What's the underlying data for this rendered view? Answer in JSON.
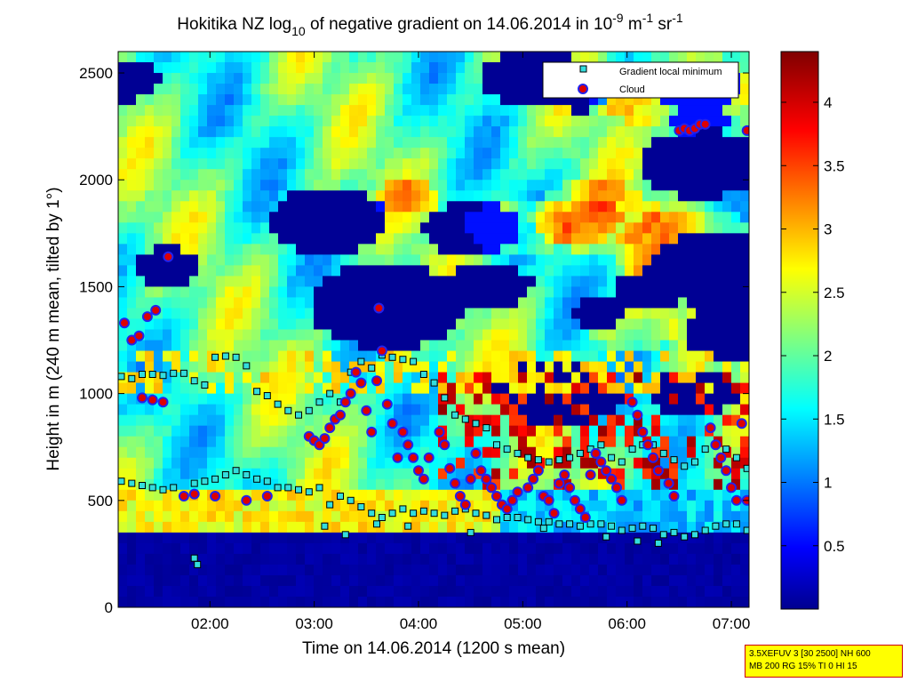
{
  "chart_data": {
    "type": "heatmap",
    "title": {
      "prefix": "Hokitika NZ log",
      "log_base": "10",
      "middle": " of negative gradient on 14.06.2014 in 10",
      "exp1": "-9",
      "unit1": " m",
      "exp2": "-1",
      "unit2": " sr",
      "exp3": "-1"
    },
    "xlabel": "Time on 14.06.2014 (1200 s mean)",
    "ylabel": "Height in m (240 m mean, tilted by 1°)",
    "x_ticks": [
      "02:00",
      "03:00",
      "04:00",
      "05:00",
      "06:00",
      "07:00"
    ],
    "x_tick_hours": [
      2,
      3,
      4,
      5,
      6,
      7
    ],
    "xlim_hours": [
      1.12,
      7.17
    ],
    "y_ticks": [
      0,
      500,
      1000,
      1500,
      2000,
      2500
    ],
    "ylim": [
      0,
      2600
    ],
    "colorbar": {
      "ticks": [
        0.5,
        1,
        1.5,
        2,
        2.5,
        3,
        3.5,
        4
      ],
      "tick_labels": [
        "0.5",
        "1",
        "1.5",
        "2",
        "2.5",
        "3",
        "3.5",
        "4"
      ],
      "range": [
        0,
        4.4
      ],
      "colormap": "jet"
    },
    "legend": {
      "placement": "top-right",
      "entries": [
        "Gradient local minimum",
        "Cloud"
      ]
    },
    "series": [
      {
        "name": "Gradient local minimum",
        "marker": "square",
        "points": [
          [
            1.15,
            1080
          ],
          [
            1.25,
            1070
          ],
          [
            1.35,
            1090
          ],
          [
            1.45,
            1090
          ],
          [
            1.55,
            1085
          ],
          [
            1.65,
            1095
          ],
          [
            1.75,
            1095
          ],
          [
            1.85,
            1060
          ],
          [
            1.95,
            1040
          ],
          [
            2.05,
            1170
          ],
          [
            2.15,
            1175
          ],
          [
            2.25,
            1170
          ],
          [
            2.35,
            1130
          ],
          [
            2.45,
            1010
          ],
          [
            2.55,
            990
          ],
          [
            2.65,
            950
          ],
          [
            2.75,
            920
          ],
          [
            2.85,
            900
          ],
          [
            2.95,
            920
          ],
          [
            3.05,
            960
          ],
          [
            3.15,
            1000
          ],
          [
            3.25,
            960
          ],
          [
            3.35,
            1100
          ],
          [
            3.45,
            1150
          ],
          [
            3.55,
            1120
          ],
          [
            3.65,
            1180
          ],
          [
            3.75,
            1170
          ],
          [
            3.85,
            1160
          ],
          [
            3.95,
            1150
          ],
          [
            4.05,
            1090
          ],
          [
            4.15,
            1050
          ],
          [
            4.25,
            980
          ],
          [
            4.35,
            900
          ],
          [
            4.45,
            880
          ],
          [
            4.55,
            860
          ],
          [
            4.65,
            840
          ],
          [
            4.75,
            760
          ],
          [
            4.85,
            740
          ],
          [
            4.95,
            720
          ],
          [
            5.05,
            700
          ],
          [
            5.15,
            690
          ],
          [
            5.25,
            680
          ],
          [
            5.35,
            690
          ],
          [
            5.45,
            700
          ],
          [
            5.55,
            720
          ],
          [
            5.65,
            740
          ],
          [
            5.75,
            760
          ],
          [
            5.85,
            700
          ],
          [
            5.95,
            680
          ],
          [
            6.05,
            740
          ],
          [
            6.15,
            760
          ],
          [
            6.25,
            760
          ],
          [
            6.35,
            720
          ],
          [
            6.45,
            690
          ],
          [
            6.55,
            660
          ],
          [
            6.65,
            680
          ],
          [
            6.75,
            740
          ],
          [
            6.85,
            760
          ],
          [
            6.95,
            740
          ],
          [
            7.05,
            700
          ],
          [
            7.15,
            650
          ],
          [
            1.15,
            590
          ],
          [
            1.25,
            580
          ],
          [
            1.35,
            570
          ],
          [
            1.45,
            560
          ],
          [
            1.55,
            550
          ],
          [
            1.65,
            560
          ],
          [
            1.75,
            520
          ],
          [
            1.85,
            580
          ],
          [
            1.95,
            590
          ],
          [
            2.05,
            600
          ],
          [
            2.15,
            620
          ],
          [
            2.25,
            640
          ],
          [
            2.35,
            620
          ],
          [
            2.45,
            600
          ],
          [
            2.55,
            590
          ],
          [
            2.65,
            560
          ],
          [
            2.75,
            560
          ],
          [
            2.85,
            550
          ],
          [
            2.95,
            540
          ],
          [
            3.05,
            560
          ],
          [
            3.15,
            480
          ],
          [
            3.25,
            520
          ],
          [
            3.35,
            500
          ],
          [
            3.45,
            470
          ],
          [
            3.55,
            440
          ],
          [
            3.65,
            420
          ],
          [
            3.75,
            440
          ],
          [
            3.85,
            460
          ],
          [
            3.95,
            440
          ],
          [
            4.05,
            450
          ],
          [
            4.15,
            440
          ],
          [
            4.25,
            430
          ],
          [
            4.35,
            450
          ],
          [
            4.45,
            460
          ],
          [
            4.55,
            440
          ],
          [
            4.65,
            430
          ],
          [
            4.75,
            410
          ],
          [
            4.85,
            420
          ],
          [
            4.95,
            420
          ],
          [
            5.05,
            410
          ],
          [
            5.15,
            400
          ],
          [
            5.25,
            400
          ],
          [
            5.35,
            390
          ],
          [
            5.45,
            390
          ],
          [
            5.55,
            380
          ],
          [
            5.65,
            390
          ],
          [
            5.75,
            390
          ],
          [
            5.85,
            380
          ],
          [
            5.95,
            360
          ],
          [
            6.05,
            370
          ],
          [
            6.15,
            380
          ],
          [
            6.25,
            370
          ],
          [
            6.35,
            340
          ],
          [
            6.45,
            350
          ],
          [
            6.55,
            330
          ],
          [
            6.65,
            340
          ],
          [
            6.75,
            360
          ],
          [
            6.85,
            380
          ],
          [
            6.95,
            390
          ],
          [
            7.05,
            390
          ],
          [
            7.15,
            360
          ],
          [
            1.85,
            230
          ],
          [
            1.88,
            200
          ],
          [
            3.1,
            380
          ],
          [
            3.3,
            340
          ],
          [
            3.6,
            390
          ],
          [
            3.9,
            380
          ],
          [
            4.5,
            350
          ],
          [
            5.2,
            370
          ],
          [
            5.8,
            330
          ],
          [
            6.1,
            310
          ],
          [
            6.3,
            300
          ]
        ]
      },
      {
        "name": "Cloud",
        "marker": "circle",
        "points": [
          [
            1.18,
            1330
          ],
          [
            1.25,
            1250
          ],
          [
            1.32,
            1270
          ],
          [
            1.4,
            1360
          ],
          [
            1.48,
            1390
          ],
          [
            1.6,
            1640
          ],
          [
            1.35,
            980
          ],
          [
            1.45,
            970
          ],
          [
            1.55,
            960
          ],
          [
            1.75,
            520
          ],
          [
            1.85,
            530
          ],
          [
            2.05,
            520
          ],
          [
            2.35,
            500
          ],
          [
            2.55,
            520
          ],
          [
            2.95,
            800
          ],
          [
            3.0,
            780
          ],
          [
            3.05,
            760
          ],
          [
            3.1,
            790
          ],
          [
            3.15,
            840
          ],
          [
            3.2,
            880
          ],
          [
            3.25,
            900
          ],
          [
            3.3,
            960
          ],
          [
            3.35,
            1000
          ],
          [
            3.4,
            1100
          ],
          [
            3.45,
            1050
          ],
          [
            3.5,
            920
          ],
          [
            3.55,
            820
          ],
          [
            3.6,
            1060
          ],
          [
            3.62,
            1400
          ],
          [
            3.65,
            1200
          ],
          [
            3.7,
            950
          ],
          [
            3.75,
            860
          ],
          [
            3.8,
            700
          ],
          [
            3.85,
            820
          ],
          [
            3.9,
            760
          ],
          [
            3.95,
            700
          ],
          [
            4.0,
            640
          ],
          [
            4.05,
            600
          ],
          [
            4.1,
            700
          ],
          [
            4.2,
            820
          ],
          [
            4.25,
            760
          ],
          [
            4.3,
            650
          ],
          [
            4.35,
            580
          ],
          [
            4.4,
            520
          ],
          [
            4.45,
            480
          ],
          [
            4.5,
            600
          ],
          [
            4.55,
            720
          ],
          [
            4.6,
            640
          ],
          [
            4.65,
            600
          ],
          [
            4.7,
            560
          ],
          [
            4.75,
            520
          ],
          [
            4.8,
            480
          ],
          [
            4.85,
            460
          ],
          [
            4.9,
            500
          ],
          [
            4.95,
            540
          ],
          [
            5.05,
            560
          ],
          [
            5.1,
            600
          ],
          [
            5.15,
            640
          ],
          [
            5.2,
            520
          ],
          [
            5.25,
            500
          ],
          [
            5.3,
            440
          ],
          [
            5.35,
            580
          ],
          [
            5.4,
            620
          ],
          [
            5.45,
            560
          ],
          [
            5.5,
            500
          ],
          [
            5.55,
            460
          ],
          [
            5.6,
            420
          ],
          [
            5.65,
            620
          ],
          [
            5.7,
            720
          ],
          [
            5.75,
            680
          ],
          [
            5.8,
            640
          ],
          [
            5.85,
            600
          ],
          [
            5.9,
            560
          ],
          [
            5.95,
            500
          ],
          [
            6.05,
            960
          ],
          [
            6.1,
            900
          ],
          [
            6.15,
            820
          ],
          [
            6.2,
            760
          ],
          [
            6.25,
            700
          ],
          [
            6.3,
            640
          ],
          [
            6.4,
            580
          ],
          [
            6.45,
            520
          ],
          [
            6.5,
            2230
          ],
          [
            6.55,
            2240
          ],
          [
            6.6,
            2230
          ],
          [
            6.65,
            2240
          ],
          [
            6.7,
            2260
          ],
          [
            6.75,
            2260
          ],
          [
            6.8,
            840
          ],
          [
            6.85,
            760
          ],
          [
            6.9,
            700
          ],
          [
            6.95,
            640
          ],
          [
            7.0,
            560
          ],
          [
            7.05,
            500
          ],
          [
            7.1,
            860
          ],
          [
            7.15,
            2230
          ],
          [
            7.15,
            500
          ]
        ]
      }
    ]
  },
  "info_box": {
    "line1": "3.5XEFUV 3 [30 2500] NH 600",
    "line2": "MB 200 RG 15% TI 0 HI 15"
  }
}
